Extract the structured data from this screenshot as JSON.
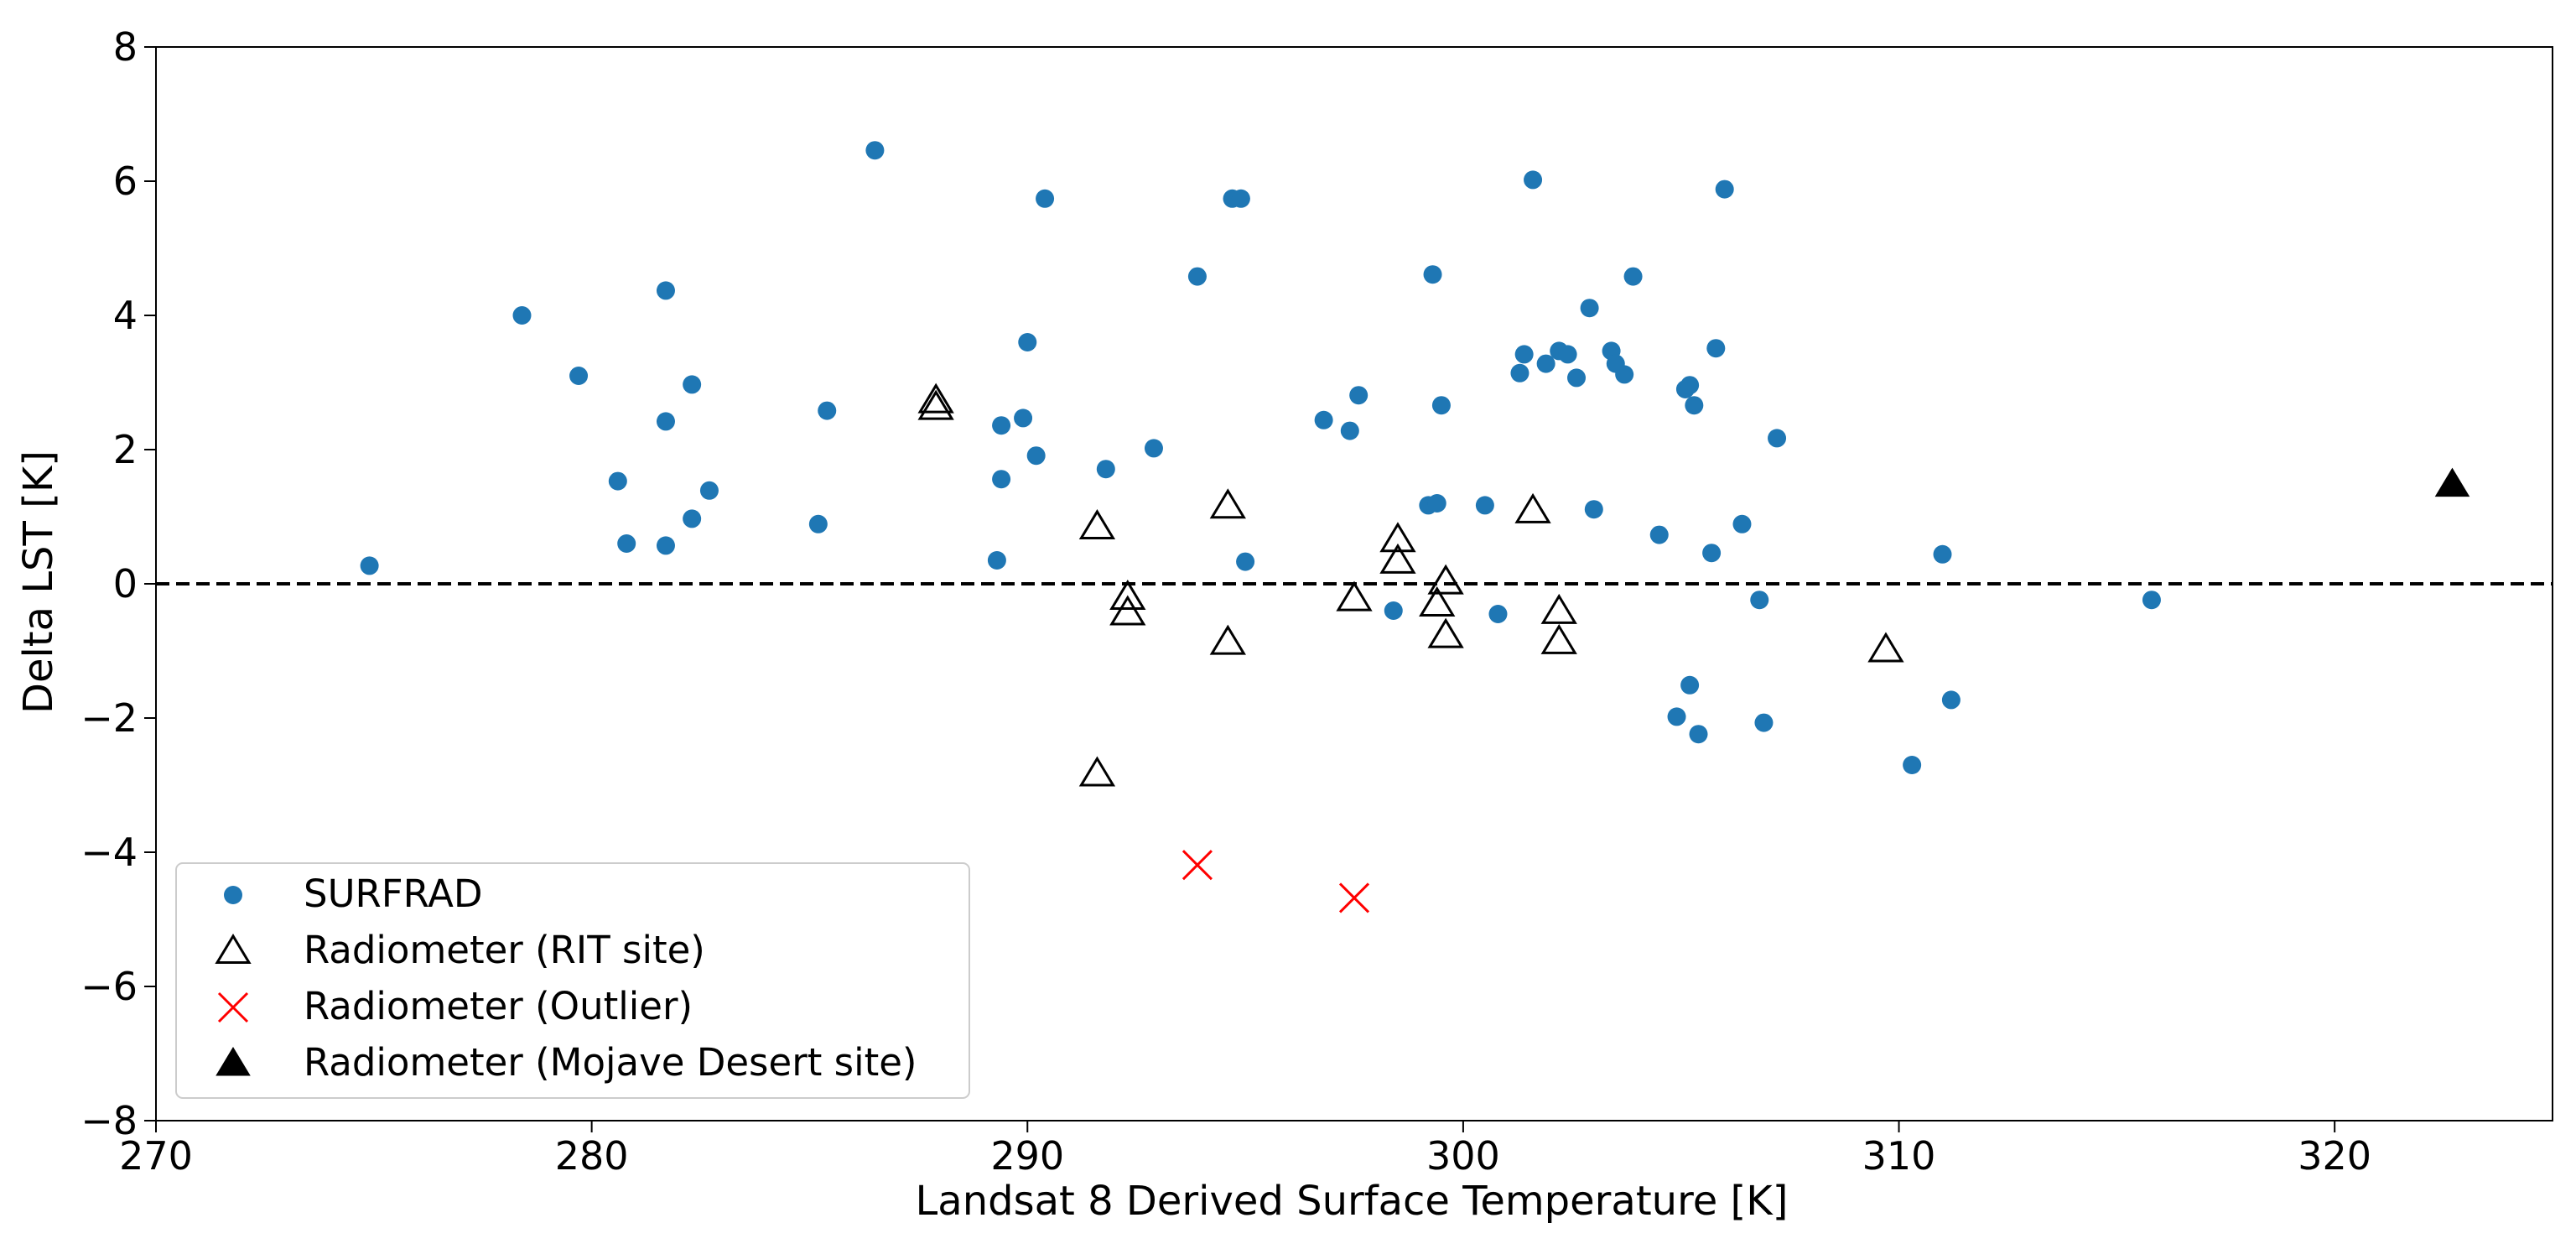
{
  "chart_data": {
    "type": "scatter",
    "title": "",
    "xlabel": "Landsat 8 Derived Surface Temperature [K]",
    "ylabel": "Delta LST [K]",
    "xlim": [
      270,
      325
    ],
    "ylim": [
      -8,
      8
    ],
    "xticks": [
      270,
      280,
      290,
      300,
      310,
      320
    ],
    "yticks": [
      -8,
      -6,
      -4,
      -2,
      0,
      2,
      4,
      6,
      8
    ],
    "xtick_labels": [
      "270",
      "280",
      "290",
      "300",
      "310",
      "320"
    ],
    "ytick_labels": [
      "−8",
      "−6",
      "−4",
      "−2",
      "0",
      "2",
      "4",
      "6",
      "8"
    ],
    "reference_line": {
      "y": 0,
      "style": "dashed",
      "color": "#000000"
    },
    "legend_position": "lower-left",
    "series": [
      {
        "name": "SURFRAD",
        "marker": "circle",
        "color": "#1f77b4",
        "points": [
          [
            274.9,
            0.27
          ],
          [
            278.4,
            4.0
          ],
          [
            279.7,
            3.1
          ],
          [
            280.6,
            1.53
          ],
          [
            280.8,
            0.6
          ],
          [
            281.7,
            4.37
          ],
          [
            281.7,
            2.42
          ],
          [
            281.7,
            0.57
          ],
          [
            282.3,
            2.97
          ],
          [
            282.3,
            0.97
          ],
          [
            282.7,
            1.39
          ],
          [
            285.2,
            0.89
          ],
          [
            285.4,
            2.58
          ],
          [
            286.5,
            6.46
          ],
          [
            289.4,
            2.36
          ],
          [
            289.4,
            1.56
          ],
          [
            289.3,
            0.35
          ],
          [
            289.9,
            2.47
          ],
          [
            290.0,
            3.6
          ],
          [
            290.2,
            1.91
          ],
          [
            290.4,
            5.74
          ],
          [
            291.8,
            1.71
          ],
          [
            292.9,
            2.02
          ],
          [
            293.9,
            4.58
          ],
          [
            294.7,
            5.74
          ],
          [
            294.9,
            5.74
          ],
          [
            295.0,
            0.33
          ],
          [
            296.8,
            2.44
          ],
          [
            297.4,
            2.28
          ],
          [
            297.6,
            2.81
          ],
          [
            298.4,
            -0.4
          ],
          [
            299.2,
            1.17
          ],
          [
            299.4,
            1.2
          ],
          [
            299.3,
            4.61
          ],
          [
            299.5,
            2.66
          ],
          [
            300.5,
            1.17
          ],
          [
            300.8,
            -0.45
          ],
          [
            301.3,
            3.14
          ],
          [
            301.4,
            3.42
          ],
          [
            301.6,
            6.02
          ],
          [
            301.9,
            3.28
          ],
          [
            302.2,
            3.47
          ],
          [
            302.4,
            3.42
          ],
          [
            302.6,
            3.07
          ],
          [
            302.9,
            4.11
          ],
          [
            303.0,
            1.11
          ],
          [
            303.4,
            3.47
          ],
          [
            303.5,
            3.28
          ],
          [
            303.7,
            3.12
          ],
          [
            303.9,
            4.58
          ],
          [
            304.5,
            0.73
          ],
          [
            304.9,
            -1.98
          ],
          [
            305.1,
            2.9
          ],
          [
            305.2,
            2.96
          ],
          [
            305.2,
            -1.51
          ],
          [
            305.3,
            2.66
          ],
          [
            305.4,
            -2.24
          ],
          [
            305.7,
            0.46
          ],
          [
            305.8,
            3.51
          ],
          [
            306.0,
            5.88
          ],
          [
            306.4,
            0.89
          ],
          [
            306.8,
            -0.24
          ],
          [
            306.9,
            -2.07
          ],
          [
            307.2,
            2.17
          ],
          [
            310.3,
            -2.7
          ],
          [
            311.0,
            0.44
          ],
          [
            311.2,
            -1.73
          ],
          [
            315.8,
            -0.24
          ]
        ]
      },
      {
        "name": "Radiometer (RIT site)",
        "marker": "triangle-open",
        "color": "#000000",
        "points": [
          [
            287.9,
            2.73
          ],
          [
            287.9,
            2.63
          ],
          [
            291.6,
            0.85
          ],
          [
            291.6,
            -2.83
          ],
          [
            292.3,
            -0.2
          ],
          [
            292.3,
            -0.43
          ],
          [
            294.6,
            1.16
          ],
          [
            294.6,
            -0.87
          ],
          [
            297.5,
            -0.22
          ],
          [
            298.5,
            0.66
          ],
          [
            298.5,
            0.34
          ],
          [
            299.4,
            -0.3
          ],
          [
            299.6,
            0.03
          ],
          [
            299.6,
            -0.77
          ],
          [
            301.6,
            1.09
          ],
          [
            302.2,
            -0.41
          ],
          [
            302.2,
            -0.86
          ],
          [
            309.7,
            -0.98
          ]
        ]
      },
      {
        "name": "Radiometer (Outlier)",
        "marker": "x",
        "color": "#ff0000",
        "points": [
          [
            293.9,
            -4.19
          ],
          [
            297.5,
            -4.68
          ]
        ]
      },
      {
        "name": "Radiometer (Mojave Desert site)",
        "marker": "triangle-filled",
        "color": "#000000",
        "points": [
          [
            322.7,
            1.48
          ]
        ]
      }
    ]
  }
}
